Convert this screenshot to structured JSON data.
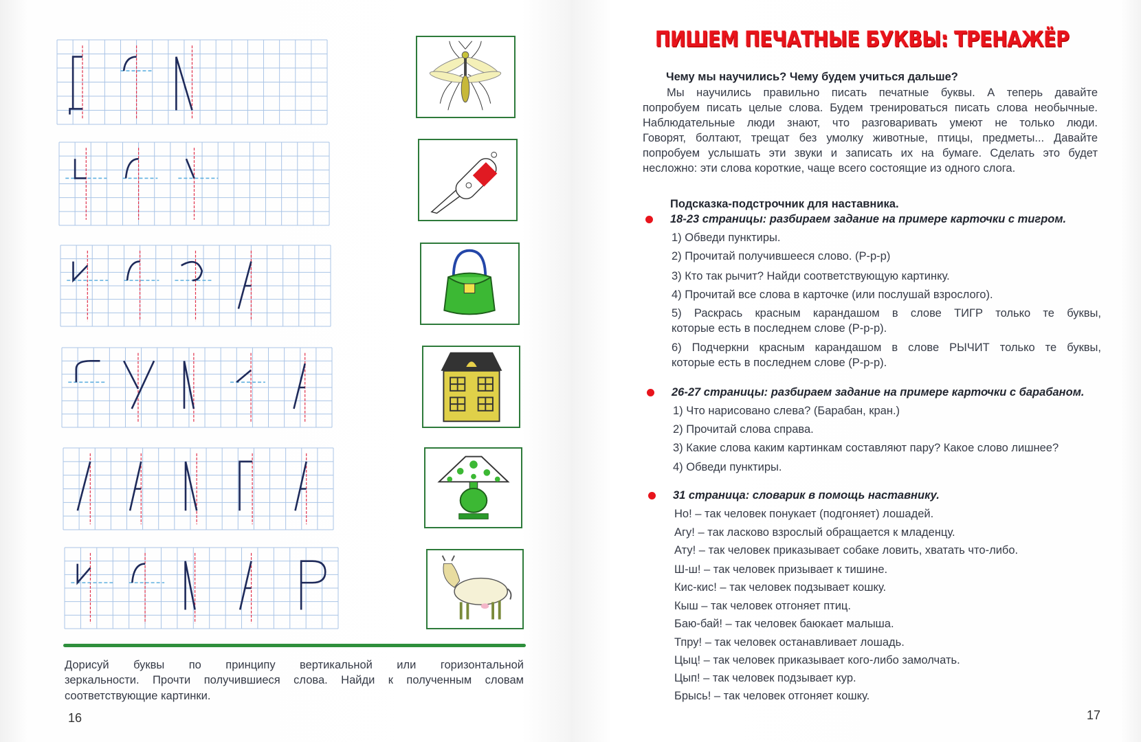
{
  "left_page": {
    "instruction_lines": [
      "Дорисуй буквы по принципу вертикальной или горизонтальной",
      "зеркальности. Прочти получившиеся слова. Найди к полученным словам",
      "соответствующие картинки."
    ],
    "page_number": "16",
    "pictures": [
      "mosquito-icon",
      "knife-icon",
      "handbag-icon",
      "house-icon",
      "lamp-icon",
      "goat-icon"
    ],
    "colors": {
      "frame": "#2d7a3a",
      "rule": "#2e8f3c",
      "grid": "#a9c4e6",
      "mirror_line": "#e0304a"
    }
  },
  "right_page": {
    "title": "ПИШЕМ ПЕЧАТНЫЕ БУКВЫ: ТРЕНАЖЁР",
    "title_color": "#e8141c",
    "intro_heading": "Чему мы научились? Чему будем учиться дальше?",
    "intro_lines": [
      "Мы научились правильно писать печатные буквы. А теперь давайте",
      "попробуем писать целые слова. Будем тренироваться писать слова необычные.",
      "Наблюдательные люди знают, что разговаривать умеют не только люди.",
      "Говорят, болтают, трещат без умолку животные, птицы, предметы... Давайте",
      "попробуем услышать эти звуки и записать их на бумаге. Сделать это будет",
      "несложно: эти слова короткие, чаще всего состоящие из одного слога."
    ],
    "hint_heading": "Подсказка-подстрочник для наставника.",
    "sections": [
      {
        "heading": "18-23 страницы: разбираем задание на примере карточки с тигром.",
        "items": [
          "1) Обведи пунктиры.",
          "2) Прочитай получившееся слово. (Р-р-р)",
          "3) Кто так рычит? Найди соответствующую картинку.",
          "4) Прочитай все слова в карточке (или послушай взрослого).",
          "5) Раскрась красным карандашом в слове ТИГР только те буквы,",
          "которые есть в последнем слове (Р-р-р).",
          "6) Подчеркни красным карандашом в слове РЫЧИТ только те буквы,",
          "которые есть в последнем слове (Р-р-р)."
        ]
      },
      {
        "heading": "26-27 страницы: разбираем задание на примере карточки с барабаном.",
        "items": [
          "1) Что нарисовано слева? (Барабан, кран.)",
          "2) Прочитай слова справа.",
          "3) Какие слова каким картинкам составляют пару? Какое слово лишнее?",
          "4) Обведи пунктиры."
        ]
      },
      {
        "heading": "31 страница: словарик в помощь наставнику.",
        "items": [
          "Но! – так человек понукает (подгоняет) лошадей.",
          "Агу! – так ласково взрослый обращается к младенцу.",
          "Ату! – так человек приказывает собаке ловить, хватать что-либо.",
          "Ш-ш! – так человек призывает к тишине.",
          "Кис-кис! – так человек подзывает кошку.",
          "Кыш – так человек отгоняет птиц.",
          "Баю-бай! – так человек баюкает малыша.",
          "Тпру! – так человек останавливает лошадь.",
          "Цыц! – так человек приказывает кого-либо замолчать.",
          "Цып! – так человек подзывает кур.",
          "Брысь! – так человек отгоняет кошку."
        ]
      }
    ],
    "page_number": "17"
  }
}
